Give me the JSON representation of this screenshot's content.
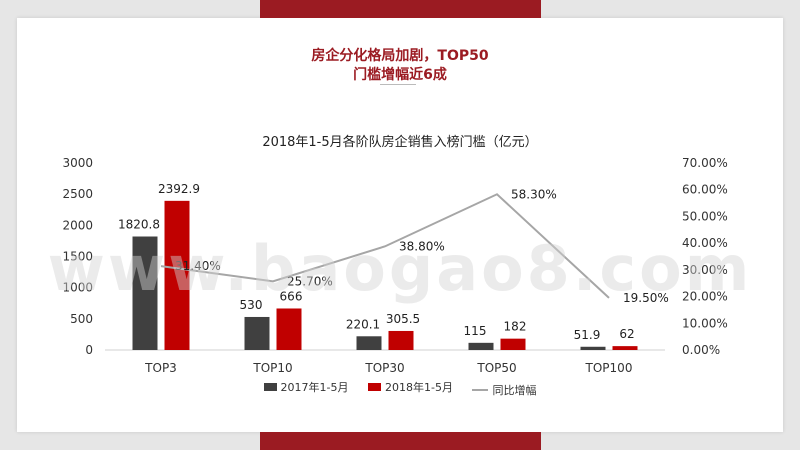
{
  "headline": {
    "line1": "房企分化格局加剧，TOP50",
    "line2": "门槛增幅近6成"
  },
  "watermark": "www.baogao8.com",
  "colors": {
    "series2017": "#404040",
    "series2018": "#c00000",
    "growth_line": "#a6a6a6",
    "accent": "#9b1b22"
  },
  "chart_data": {
    "type": "bar",
    "title": "2018年1-5月各阶队房企销售入榜门槛（亿元）",
    "categories": [
      "TOP3",
      "TOP10",
      "TOP30",
      "TOP50",
      "TOP100"
    ],
    "series": [
      {
        "name": "2017年1-5月",
        "type": "bar",
        "axis": "left",
        "values": [
          1820.8,
          530,
          220.1,
          115,
          51.9
        ],
        "labels": [
          "1820.8",
          "530",
          "220.1",
          "115",
          "51.9"
        ]
      },
      {
        "name": "2018年1-5月",
        "type": "bar",
        "axis": "left",
        "values": [
          2392.9,
          666,
          305.5,
          182,
          62
        ],
        "labels": [
          "2392.9",
          "666",
          "305.5",
          "182",
          "62"
        ]
      },
      {
        "name": "同比增幅",
        "type": "line",
        "axis": "right",
        "values": [
          31.4,
          25.7,
          38.8,
          58.3,
          19.5
        ],
        "labels": [
          "31.40%",
          "25.70%",
          "38.80%",
          "58.30%",
          "19.50%"
        ]
      }
    ],
    "y_left": {
      "ylim": [
        0,
        3000
      ],
      "ticks": [
        "0",
        "500",
        "1000",
        "1500",
        "2000",
        "2500",
        "3000"
      ]
    },
    "y_right": {
      "ylim": [
        0,
        70
      ],
      "ticks": [
        "0.00%",
        "10.00%",
        "20.00%",
        "30.00%",
        "40.00%",
        "50.00%",
        "60.00%",
        "70.00%"
      ]
    },
    "grid": false,
    "legend_position": "bottom"
  }
}
